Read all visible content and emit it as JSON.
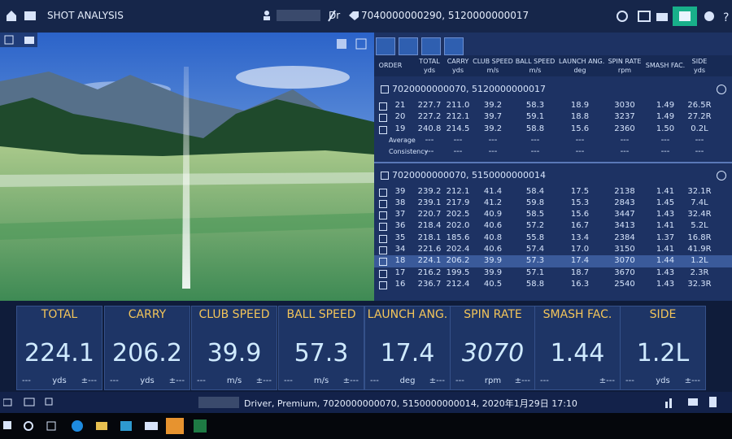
{
  "header": {
    "title": "SHOT ANALYSIS",
    "club": "Dr",
    "ids": "7040000000290, 5120000000017"
  },
  "table": {
    "columns": [
      {
        "name": "ORDER"
      },
      {
        "name": "TOTAL",
        "unit": "yds"
      },
      {
        "name": "CARRY",
        "unit": "yds"
      },
      {
        "name": "CLUB SPEED",
        "unit": "m/s"
      },
      {
        "name": "BALL SPEED",
        "unit": "m/s"
      },
      {
        "name": "LAUNCH ANG.",
        "unit": "deg"
      },
      {
        "name": "SPIN RATE",
        "unit": "rpm"
      },
      {
        "name": "SMASH FAC."
      },
      {
        "name": "SIDE",
        "unit": "yds"
      }
    ],
    "groups": [
      {
        "title": "7020000000070, 5120000000017",
        "rows": [
          [
            "21",
            "227.7",
            "211.0",
            "39.2",
            "58.3",
            "18.9",
            "3030",
            "1.49",
            "26.5R"
          ],
          [
            "20",
            "227.2",
            "212.1",
            "39.7",
            "59.1",
            "18.8",
            "3237",
            "1.49",
            "27.2R"
          ],
          [
            "19",
            "240.8",
            "214.5",
            "39.2",
            "58.8",
            "15.6",
            "2360",
            "1.50",
            "0.2L"
          ]
        ],
        "summary": [
          {
            "label": "Average",
            "values": [
              "---",
              "---",
              "---",
              "---",
              "---",
              "---",
              "---",
              "---"
            ]
          },
          {
            "label": "Consistency",
            "values": [
              "---",
              "---",
              "---",
              "---",
              "---",
              "---",
              "---",
              "---"
            ]
          }
        ]
      },
      {
        "title": "7020000000070, 5150000000014",
        "selected": 6,
        "rows": [
          [
            "39",
            "239.2",
            "212.1",
            "41.4",
            "58.4",
            "17.5",
            "2138",
            "1.41",
            "32.1R"
          ],
          [
            "38",
            "239.1",
            "217.9",
            "41.2",
            "59.8",
            "15.3",
            "2843",
            "1.45",
            "7.4L"
          ],
          [
            "37",
            "220.7",
            "202.5",
            "40.9",
            "58.5",
            "15.6",
            "3447",
            "1.43",
            "32.4R"
          ],
          [
            "36",
            "218.4",
            "202.0",
            "40.6",
            "57.2",
            "16.7",
            "3413",
            "1.41",
            "5.2L"
          ],
          [
            "35",
            "218.1",
            "185.6",
            "40.8",
            "55.8",
            "13.4",
            "2384",
            "1.37",
            "16.8R"
          ],
          [
            "34",
            "221.6",
            "202.4",
            "40.6",
            "57.4",
            "17.0",
            "3150",
            "1.41",
            "41.9R"
          ],
          [
            "18",
            "224.1",
            "206.2",
            "39.9",
            "57.3",
            "17.4",
            "3070",
            "1.44",
            "1.2L"
          ],
          [
            "17",
            "216.2",
            "199.5",
            "39.9",
            "57.1",
            "18.7",
            "3670",
            "1.43",
            "2.3R"
          ],
          [
            "16",
            "236.7",
            "212.4",
            "40.5",
            "58.8",
            "16.3",
            "2540",
            "1.43",
            "32.3R"
          ]
        ]
      }
    ]
  },
  "tiles": [
    {
      "label": "TOTAL",
      "value": "224.1",
      "unit": "yds",
      "left": "---",
      "right": "±---"
    },
    {
      "label": "CARRY",
      "value": "206.2",
      "unit": "yds",
      "left": "---",
      "right": "±---"
    },
    {
      "label": "CLUB SPEED",
      "value": "39.9",
      "unit": "m/s",
      "left": "---",
      "right": "±---"
    },
    {
      "label": "BALL SPEED",
      "value": "57.3",
      "unit": "m/s",
      "left": "---",
      "right": "±---"
    },
    {
      "label": "LAUNCH ANG.",
      "value": "17.4",
      "unit": "deg",
      "left": "---",
      "right": "±---"
    },
    {
      "label": "SPIN RATE",
      "value": "3070",
      "unit": "rpm",
      "left": "---",
      "right": "±---"
    },
    {
      "label": "SMASH FAC.",
      "value": "1.44",
      "left": "---",
      "right": "±---"
    },
    {
      "label": "SIDE",
      "value": "1.2L",
      "unit": "yds",
      "left": "---",
      "right": "±---"
    }
  ],
  "status": "Driver, Premium, 7020000000070, 5150000000014, 2020年1月29日 17:10"
}
